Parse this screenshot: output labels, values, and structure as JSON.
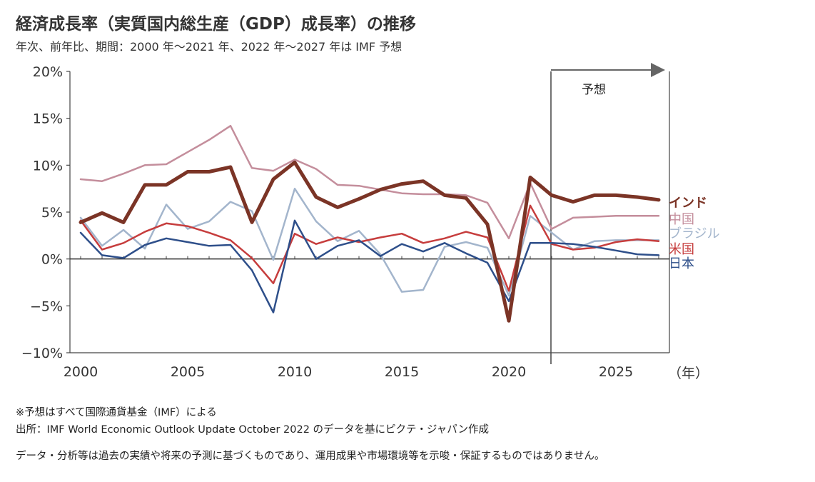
{
  "title": "経済成長率（実質国内総生産（GDP）成長率）の推移",
  "subtitle": "年次、前年比、期間：2000 年～2021 年、2022 年～2027 年は IMF 予想",
  "notes": {
    "forecast": "※予想はすべて国際通貨基金（IMF）による",
    "source": "出所：IMF World Economic Outlook Update October 2022 のデータを基にピクテ・ジャパン作成",
    "disclaimer": "データ・分析等は過去の実績や将来の予測に基づくものであり、運用成果や市場環境等を示唆・保証するものではありません。"
  },
  "chart_data": {
    "type": "line",
    "x": [
      2000,
      2001,
      2002,
      2003,
      2004,
      2005,
      2006,
      2007,
      2008,
      2009,
      2010,
      2011,
      2012,
      2013,
      2014,
      2015,
      2016,
      2017,
      2018,
      2019,
      2020,
      2021,
      2022,
      2023,
      2024,
      2025,
      2026,
      2027
    ],
    "xticks": [
      "2000",
      "2005",
      "2010",
      "2015",
      "2020",
      "2025"
    ],
    "xtick_values": [
      2000,
      2005,
      2010,
      2015,
      2020,
      2025
    ],
    "xunit": "（年）",
    "xlim": [
      1999.9,
      2027.5
    ],
    "ylim": [
      -10,
      20
    ],
    "yticks": [
      {
        "value": 20,
        "label": "20%"
      },
      {
        "value": 15,
        "label": "15%"
      },
      {
        "value": 10,
        "label": "10%"
      },
      {
        "value": 5,
        "label": "5%"
      },
      {
        "value": 0,
        "label": "0%"
      },
      {
        "value": -5,
        "label": "−5%"
      },
      {
        "value": -10,
        "label": "−10%"
      }
    ],
    "grid": false,
    "forecast_start": 2022,
    "forecast_label": "予想",
    "series": [
      {
        "name": "中国",
        "color": "#c48e9c",
        "width": 2.5,
        "values": [
          8.5,
          8.3,
          9.1,
          10.0,
          10.1,
          11.4,
          12.7,
          14.2,
          9.7,
          9.4,
          10.6,
          9.6,
          7.9,
          7.8,
          7.4,
          7.0,
          6.9,
          6.9,
          6.8,
          6.0,
          2.2,
          8.1,
          3.2,
          4.4,
          4.5,
          4.6,
          4.6,
          4.6
        ]
      },
      {
        "name": "ブラジル",
        "color": "#a3b5cc",
        "width": 2.5,
        "values": [
          4.4,
          1.4,
          3.1,
          1.1,
          5.8,
          3.2,
          4.0,
          6.1,
          5.1,
          -0.1,
          7.5,
          4.0,
          1.9,
          3.0,
          0.5,
          -3.5,
          -3.3,
          1.3,
          1.8,
          1.2,
          -3.9,
          4.6,
          2.8,
          1.0,
          1.9,
          2.0,
          2.0,
          2.0
        ]
      },
      {
        "name": "米国",
        "color": "#c63d3d",
        "width": 2.5,
        "values": [
          4.1,
          1.0,
          1.7,
          2.9,
          3.8,
          3.5,
          2.8,
          2.0,
          0.1,
          -2.6,
          2.7,
          1.6,
          2.3,
          1.8,
          2.3,
          2.7,
          1.7,
          2.2,
          2.9,
          2.3,
          -3.4,
          5.7,
          1.6,
          1.0,
          1.2,
          1.8,
          2.1,
          1.9
        ]
      },
      {
        "name": "日本",
        "color": "#2e4f8a",
        "width": 2.5,
        "values": [
          2.8,
          0.4,
          0.1,
          1.5,
          2.2,
          1.8,
          1.4,
          1.5,
          -1.2,
          -5.7,
          4.1,
          0.0,
          1.4,
          2.0,
          0.3,
          1.6,
          0.8,
          1.7,
          0.6,
          -0.4,
          -4.5,
          1.7,
          1.7,
          1.6,
          1.3,
          0.9,
          0.5,
          0.4
        ]
      },
      {
        "name": "インド",
        "color": "#7b3426",
        "width": 5,
        "values": [
          3.9,
          4.9,
          3.9,
          7.9,
          7.9,
          9.3,
          9.3,
          9.8,
          3.9,
          8.5,
          10.3,
          6.6,
          5.5,
          6.4,
          7.4,
          8.0,
          8.3,
          6.8,
          6.5,
          3.7,
          -6.6,
          8.7,
          6.8,
          6.1,
          6.8,
          6.8,
          6.6,
          6.3
        ]
      }
    ],
    "legend_order": [
      "インド",
      "中国",
      "ブラジル",
      "米国",
      "日本"
    ]
  }
}
